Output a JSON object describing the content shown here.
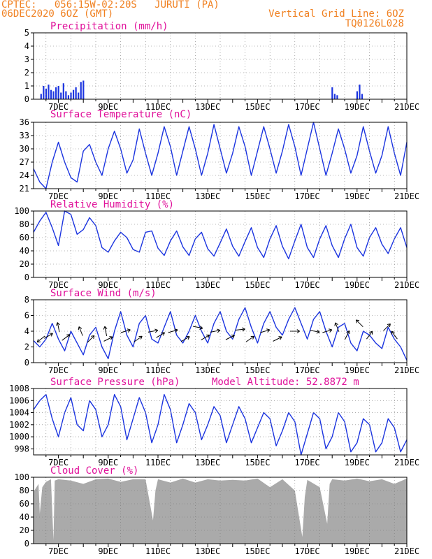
{
  "header": {
    "line1": "CPTEC:   056:15W-02:20S   JURUTI (PA)",
    "line2": "06DEC2020 6OZ (GMT)",
    "right1": "Vertical Grid Line: 6OZ",
    "right2": "TQ0126L028"
  },
  "x_ticks": [
    "7DEC",
    "9DEC",
    "11DEC",
    "13DEC",
    "15DEC",
    "17DEC",
    "19DEC",
    "21DEC"
  ],
  "colors": {
    "line": "#1b34e0",
    "bar": "#1b34e0",
    "cloud": "#aaaaaa",
    "title": "#e0109a",
    "header": "#f08020"
  },
  "chart_data": [
    {
      "id": "precip",
      "type": "bar",
      "title": "Precipitation (mm/h)",
      "ylim": [
        0,
        5
      ],
      "yticks": [
        0,
        1,
        2,
        3,
        4,
        5
      ],
      "x": [
        6.3,
        6.4,
        6.5,
        6.6,
        6.7,
        6.8,
        6.9,
        7.0,
        7.1,
        7.2,
        7.3,
        7.4,
        7.5,
        7.6,
        7.7,
        7.8,
        7.9,
        8.0,
        18.0,
        18.1,
        18.2,
        19.0,
        19.1,
        19.2
      ],
      "values": [
        0.4,
        1.0,
        0.8,
        1.1,
        0.7,
        0.6,
        0.9,
        1.0,
        0.5,
        1.2,
        0.6,
        0.3,
        0.5,
        0.7,
        0.9,
        0.5,
        1.3,
        1.4,
        0.9,
        0.4,
        0.3,
        0.6,
        1.1,
        0.4
      ]
    },
    {
      "id": "temp",
      "type": "line",
      "title": "Surface Temperature (nC)",
      "ylim": [
        21,
        36
      ],
      "yticks": [
        21,
        24,
        27,
        30,
        33,
        36
      ],
      "x": [
        6.0,
        6.25,
        6.5,
        6.75,
        7.0,
        7.25,
        7.5,
        7.75,
        8.0,
        8.25,
        8.5,
        8.75,
        9.0,
        9.25,
        9.5,
        9.75,
        10.0,
        10.25,
        10.5,
        10.75,
        11.0,
        11.25,
        11.5,
        11.75,
        12.0,
        12.25,
        12.5,
        12.75,
        13.0,
        13.25,
        13.5,
        13.75,
        14.0,
        14.25,
        14.5,
        14.75,
        15.0,
        15.25,
        15.5,
        15.75,
        16.0,
        16.25,
        16.5,
        16.75,
        17.0,
        17.25,
        17.5,
        17.75,
        18.0,
        18.25,
        18.5,
        18.75,
        19.0,
        19.25,
        19.5,
        19.75,
        20.0,
        20.25,
        20.5,
        20.75,
        21.0
      ],
      "values": [
        25.5,
        22.5,
        21.0,
        27.0,
        31.5,
        27.0,
        23.5,
        22.5,
        29.5,
        31.0,
        27.0,
        24.0,
        30.0,
        34.0,
        30.0,
        24.5,
        27.5,
        34.5,
        29.0,
        24.0,
        29.0,
        35.0,
        30.5,
        24.0,
        29.5,
        35.0,
        30.0,
        24.0,
        29.0,
        35.5,
        30.0,
        24.5,
        29.0,
        35.0,
        30.5,
        24.0,
        29.5,
        35.0,
        30.0,
        24.5,
        29.5,
        35.5,
        30.5,
        24.0,
        30.0,
        36.0,
        30.0,
        24.0,
        29.0,
        34.5,
        30.0,
        24.5,
        28.5,
        35.0,
        29.5,
        24.5,
        28.5,
        35.0,
        29.0,
        24.0,
        31.5
      ]
    },
    {
      "id": "rh",
      "type": "line",
      "title": "Relative Humidity (%)",
      "ylim": [
        0,
        100
      ],
      "yticks": [
        0,
        20,
        40,
        60,
        80,
        100
      ],
      "x": [
        6.0,
        6.25,
        6.5,
        6.75,
        7.0,
        7.25,
        7.5,
        7.75,
        8.0,
        8.25,
        8.5,
        8.75,
        9.0,
        9.25,
        9.5,
        9.75,
        10.0,
        10.25,
        10.5,
        10.75,
        11.0,
        11.25,
        11.5,
        11.75,
        12.0,
        12.25,
        12.5,
        12.75,
        13.0,
        13.25,
        13.5,
        13.75,
        14.0,
        14.25,
        14.5,
        14.75,
        15.0,
        15.25,
        15.5,
        15.75,
        16.0,
        16.25,
        16.5,
        16.75,
        17.0,
        17.25,
        17.5,
        17.75,
        18.0,
        18.25,
        18.5,
        18.75,
        19.0,
        19.25,
        19.5,
        19.75,
        20.0,
        20.25,
        20.5,
        20.75,
        21.0
      ],
      "values": [
        68,
        85,
        98,
        75,
        48,
        100,
        95,
        65,
        72,
        90,
        78,
        45,
        38,
        55,
        68,
        60,
        42,
        38,
        68,
        70,
        44,
        33,
        55,
        70,
        46,
        33,
        58,
        68,
        43,
        32,
        52,
        73,
        47,
        32,
        54,
        75,
        45,
        30,
        58,
        78,
        47,
        28,
        55,
        80,
        45,
        30,
        58,
        78,
        48,
        30,
        58,
        80,
        45,
        32,
        60,
        75,
        50,
        36,
        58,
        75,
        45
      ]
    },
    {
      "id": "wind",
      "type": "line",
      "title": "Surface Wind (m/s)",
      "ylim": [
        0,
        8
      ],
      "yticks": [
        0,
        2,
        4,
        6,
        8
      ],
      "x": [
        6.0,
        6.25,
        6.5,
        6.75,
        7.0,
        7.25,
        7.5,
        7.75,
        8.0,
        8.25,
        8.5,
        8.75,
        9.0,
        9.25,
        9.5,
        9.75,
        10.0,
        10.25,
        10.5,
        10.75,
        11.0,
        11.25,
        11.5,
        11.75,
        12.0,
        12.25,
        12.5,
        12.75,
        13.0,
        13.25,
        13.5,
        13.75,
        14.0,
        14.25,
        14.5,
        14.75,
        15.0,
        15.25,
        15.5,
        15.75,
        16.0,
        16.25,
        16.5,
        16.75,
        17.0,
        17.25,
        17.5,
        17.75,
        18.0,
        18.25,
        18.5,
        18.75,
        19.0,
        19.25,
        19.5,
        19.75,
        20.0,
        20.25,
        20.5,
        20.75,
        21.0
      ],
      "values": [
        2.8,
        2.0,
        3.0,
        5.0,
        3.0,
        1.5,
        4.0,
        2.5,
        1.0,
        3.5,
        4.5,
        2.0,
        0.5,
        4.0,
        6.5,
        3.5,
        2.0,
        5.0,
        6.0,
        3.0,
        2.5,
        4.5,
        6.5,
        3.5,
        2.5,
        4.0,
        6.0,
        4.0,
        2.5,
        5.0,
        6.5,
        4.0,
        3.0,
        5.5,
        7.0,
        4.5,
        2.5,
        5.0,
        6.5,
        4.5,
        3.5,
        5.5,
        7.0,
        5.0,
        3.0,
        5.5,
        6.5,
        4.0,
        2.0,
        4.5,
        5.0,
        2.5,
        1.5,
        4.0,
        3.5,
        2.5,
        1.8,
        4.5,
        3.0,
        2.0,
        0.3
      ],
      "arrows": [
        {
          "x": 6.3,
          "y": 3.0,
          "u": -1,
          "v": -0.8
        },
        {
          "x": 6.6,
          "y": 3.4,
          "u": 1,
          "v": 0.6
        },
        {
          "x": 7.0,
          "y": 4.5,
          "u": -0.2,
          "v": 1
        },
        {
          "x": 7.3,
          "y": 3.2,
          "u": 0.8,
          "v": 0.6
        },
        {
          "x": 7.9,
          "y": 4.0,
          "u": -0.4,
          "v": 1
        },
        {
          "x": 8.3,
          "y": 3.0,
          "u": 0.8,
          "v": 0.8
        },
        {
          "x": 8.9,
          "y": 4.0,
          "u": -0.2,
          "v": 1
        },
        {
          "x": 9.0,
          "y": 3.0,
          "u": 1,
          "v": 0.5
        },
        {
          "x": 9.7,
          "y": 4.0,
          "u": 1,
          "v": 0.3
        },
        {
          "x": 10.2,
          "y": 3.0,
          "u": 1,
          "v": 0.7
        },
        {
          "x": 10.8,
          "y": 4.0,
          "u": 1,
          "v": 0.2
        },
        {
          "x": 11.1,
          "y": 3.5,
          "u": 1,
          "v": 0.6
        },
        {
          "x": 11.6,
          "y": 4.0,
          "u": 1,
          "v": 0.3
        },
        {
          "x": 12.1,
          "y": 3.0,
          "u": 1,
          "v": 0.6
        },
        {
          "x": 12.6,
          "y": 4.5,
          "u": 1,
          "v": -0.2
        },
        {
          "x": 12.9,
          "y": 3.2,
          "u": 1,
          "v": 0.6
        },
        {
          "x": 13.3,
          "y": 4.0,
          "u": 1,
          "v": 0.2
        },
        {
          "x": 13.9,
          "y": 3.2,
          "u": 1,
          "v": 0.5
        },
        {
          "x": 14.3,
          "y": 4.2,
          "u": 1,
          "v": 0.1
        },
        {
          "x": 14.7,
          "y": 3.0,
          "u": 1,
          "v": 0.7
        },
        {
          "x": 15.3,
          "y": 4.0,
          "u": 1,
          "v": 0.3
        },
        {
          "x": 15.8,
          "y": 3.0,
          "u": 1,
          "v": 0.5
        },
        {
          "x": 16.5,
          "y": 4.0,
          "u": 1,
          "v": 0
        },
        {
          "x": 17.3,
          "y": 4.0,
          "u": 1,
          "v": -0.2
        },
        {
          "x": 17.8,
          "y": 4.0,
          "u": 1,
          "v": 0.3
        },
        {
          "x": 18.2,
          "y": 4.5,
          "u": -0.4,
          "v": 1
        },
        {
          "x": 18.6,
          "y": 3.5,
          "u": 0.5,
          "v": 1
        },
        {
          "x": 19.1,
          "y": 5.0,
          "u": -0.7,
          "v": 0.7
        },
        {
          "x": 19.5,
          "y": 3.5,
          "u": 0.6,
          "v": 0.8
        },
        {
          "x": 20.2,
          "y": 4.5,
          "u": 0.7,
          "v": 0.7
        },
        {
          "x": 20.5,
          "y": 3.5,
          "u": -0.6,
          "v": 0.8
        }
      ]
    },
    {
      "id": "press",
      "type": "line",
      "title": "Surface Pressure (hPa)",
      "subtitle": "Model Altitude: 52.8872 m",
      "ylim": [
        997,
        1008
      ],
      "yticks": [
        998,
        1000,
        1002,
        1004,
        1006,
        1008
      ],
      "x": [
        6.0,
        6.25,
        6.5,
        6.75,
        7.0,
        7.25,
        7.5,
        7.75,
        8.0,
        8.25,
        8.5,
        8.75,
        9.0,
        9.25,
        9.5,
        9.75,
        10.0,
        10.25,
        10.5,
        10.75,
        11.0,
        11.25,
        11.5,
        11.75,
        12.0,
        12.25,
        12.5,
        12.75,
        13.0,
        13.25,
        13.5,
        13.75,
        14.0,
        14.25,
        14.5,
        14.75,
        15.0,
        15.25,
        15.5,
        15.75,
        16.0,
        16.25,
        16.5,
        16.75,
        17.0,
        17.25,
        17.5,
        17.75,
        18.0,
        18.25,
        18.5,
        18.75,
        19.0,
        19.25,
        19.5,
        19.75,
        20.0,
        20.25,
        20.5,
        20.75,
        21.0
      ],
      "values": [
        1004.5,
        1006,
        1007,
        1003,
        1000,
        1004,
        1006.5,
        1002,
        1001,
        1006,
        1004.5,
        1000,
        1002,
        1007,
        1005,
        999.5,
        1003,
        1006.5,
        1004,
        999,
        1002,
        1007,
        1004.5,
        999,
        1002,
        1005.5,
        1004,
        999.5,
        1002,
        1005,
        1003.5,
        999,
        1002,
        1005,
        1003,
        999,
        1001.5,
        1004,
        1003,
        998.5,
        1001,
        1004,
        1002.5,
        997,
        1000.5,
        1004,
        1003,
        998,
        1000,
        1004,
        1002.5,
        997.5,
        999,
        1003,
        1002,
        997.5,
        999,
        1003,
        1001.5,
        997.5,
        999.5
      ]
    },
    {
      "id": "cloud",
      "type": "area",
      "title": "Cloud Cover (%)",
      "ylim": [
        0,
        100
      ],
      "yticks": [
        0,
        20,
        40,
        60,
        80,
        100
      ],
      "x": [
        6.0,
        6.2,
        6.25,
        6.35,
        6.5,
        6.7,
        6.8,
        6.85,
        7.0,
        7.5,
        8.0,
        8.5,
        9.0,
        9.5,
        10.0,
        10.5,
        10.8,
        10.9,
        11.0,
        11.5,
        12.0,
        12.5,
        13.0,
        13.5,
        14.0,
        14.5,
        15.0,
        15.5,
        16.0,
        16.5,
        16.8,
        16.9,
        17.0,
        17.5,
        17.8,
        17.9,
        18.0,
        18.5,
        19.0,
        19.5,
        20.0,
        20.5,
        21.0
      ],
      "values": [
        78,
        90,
        45,
        85,
        93,
        97,
        5,
        95,
        97,
        95,
        90,
        97,
        98,
        93,
        97,
        97,
        35,
        80,
        97,
        92,
        98,
        92,
        97,
        95,
        96,
        95,
        98,
        85,
        97,
        80,
        10,
        70,
        96,
        85,
        30,
        90,
        97,
        95,
        98,
        94,
        97,
        90,
        98
      ]
    }
  ]
}
